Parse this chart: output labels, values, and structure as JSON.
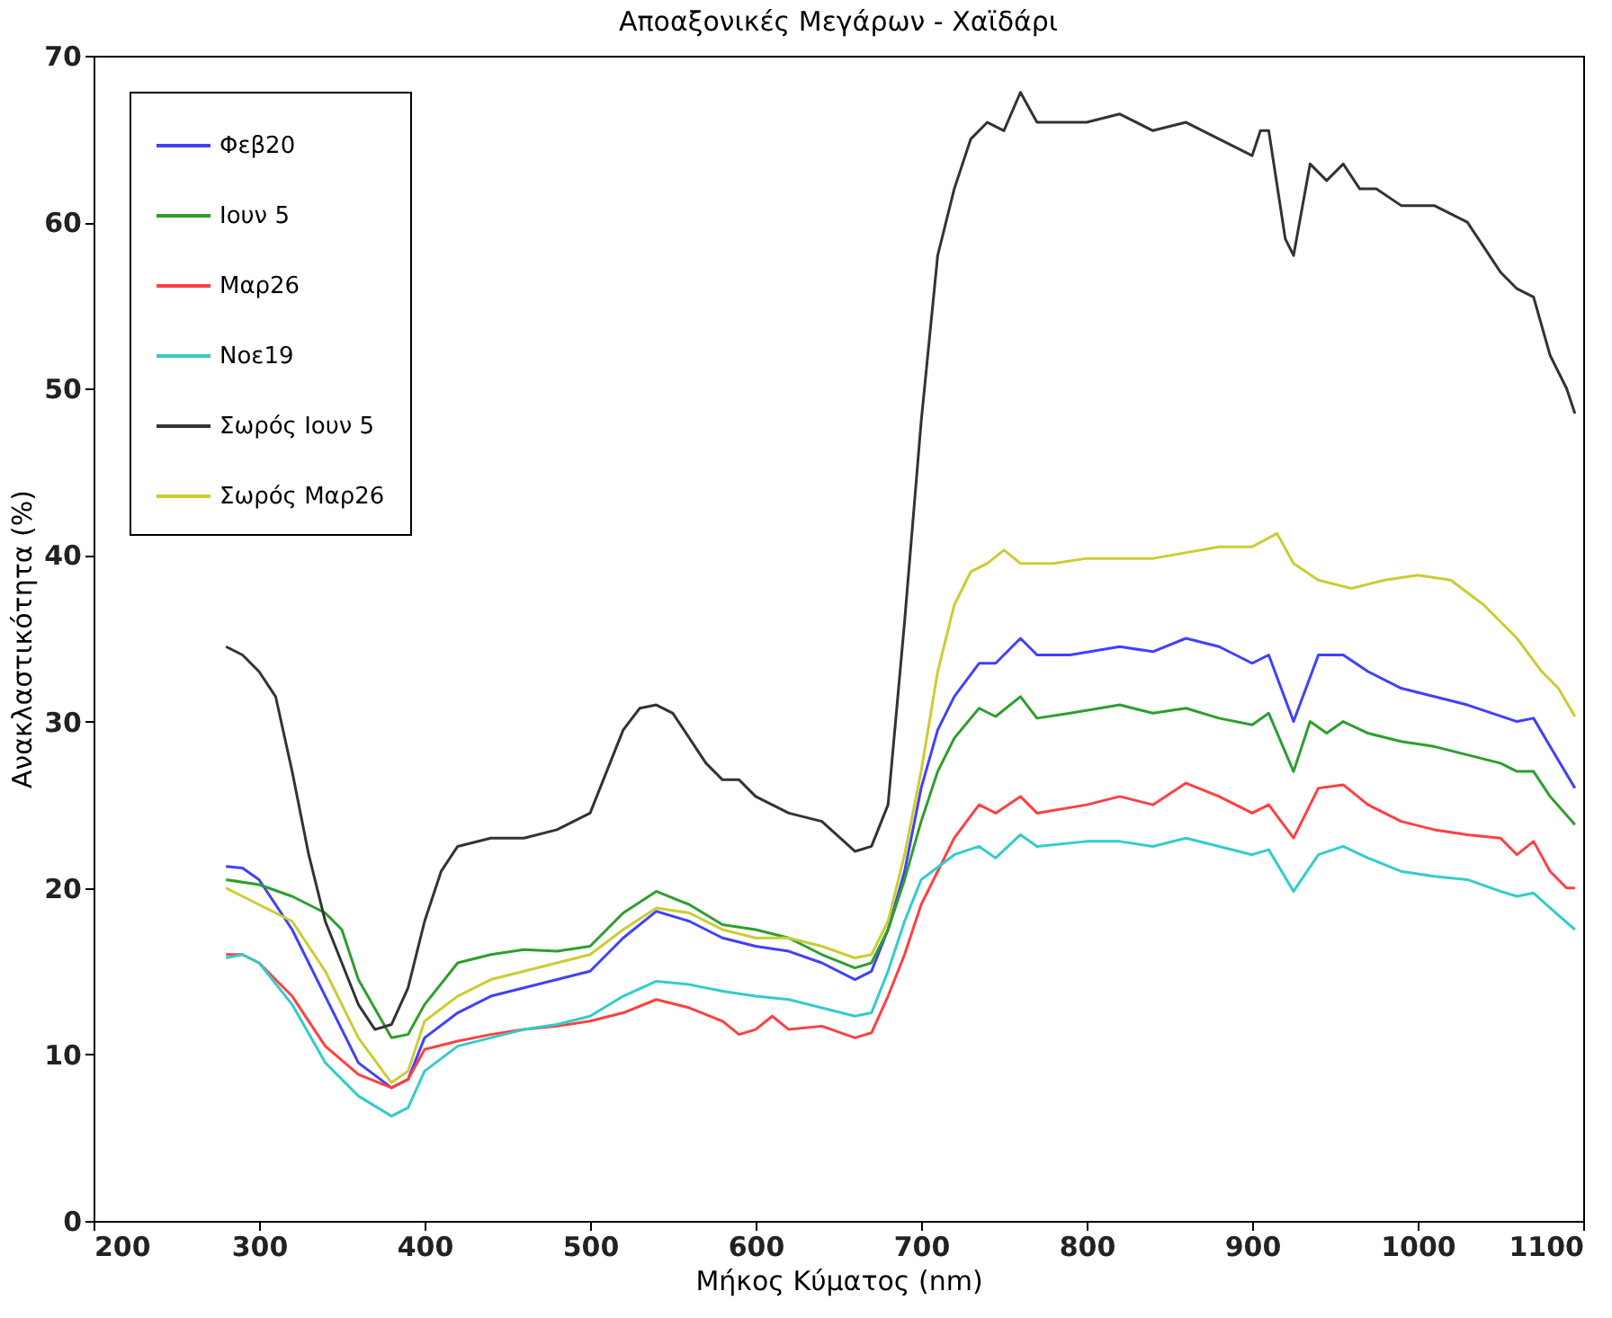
{
  "chart_data": {
    "type": "line",
    "title": "Αποαξονικές Μεγάρων - Χαϊδάρι",
    "xlabel": "Μήκος Κύματος (nm)",
    "ylabel": "Ανακλαστικότητα (%)",
    "xlim": [
      200,
      1100
    ],
    "ylim": [
      0,
      70
    ],
    "xticks": [
      200,
      300,
      400,
      500,
      600,
      700,
      800,
      900,
      1000,
      1100
    ],
    "yticks": [
      0,
      10,
      20,
      30,
      40,
      50,
      60,
      70
    ],
    "grid": false,
    "legend": "top left",
    "series": [
      {
        "name": "Φεβ20",
        "color": "#4040ff",
        "x": [
          280,
          290,
          300,
          320,
          340,
          360,
          380,
          390,
          400,
          420,
          440,
          460,
          480,
          500,
          520,
          540,
          560,
          580,
          600,
          620,
          640,
          660,
          670,
          680,
          690,
          700,
          710,
          720,
          735,
          745,
          760,
          770,
          790,
          820,
          840,
          860,
          880,
          900,
          910,
          925,
          940,
          955,
          970,
          990,
          1010,
          1030,
          1060,
          1070,
          1080,
          1095
        ],
        "values": [
          21.3,
          21.2,
          20.5,
          17.5,
          13.5,
          9.5,
          8.0,
          8.5,
          11,
          12.5,
          13.5,
          14,
          14.5,
          15,
          17,
          18.6,
          18,
          17,
          16.5,
          16.2,
          15.5,
          14.5,
          15,
          17.5,
          21,
          26,
          29.5,
          31.5,
          33.5,
          33.5,
          35,
          34,
          34,
          34.5,
          34.2,
          35,
          34.5,
          33.5,
          34,
          30,
          34,
          34,
          33,
          32,
          31.5,
          31,
          30,
          30.2,
          28.5,
          26
        ]
      },
      {
        "name": "Ιουν 5",
        "color": "#2e9e2e",
        "x": [
          280,
          300,
          320,
          340,
          350,
          360,
          380,
          390,
          400,
          420,
          440,
          460,
          480,
          500,
          520,
          540,
          560,
          580,
          600,
          620,
          640,
          660,
          670,
          680,
          690,
          700,
          710,
          720,
          735,
          745,
          760,
          770,
          790,
          820,
          840,
          860,
          880,
          900,
          910,
          925,
          935,
          945,
          955,
          970,
          990,
          1010,
          1030,
          1050,
          1060,
          1070,
          1080,
          1095
        ],
        "values": [
          20.5,
          20.2,
          19.5,
          18.5,
          17.5,
          14.5,
          11,
          11.2,
          13,
          15.5,
          16,
          16.3,
          16.2,
          16.5,
          18.5,
          19.8,
          19,
          17.8,
          17.5,
          17,
          16,
          15.2,
          15.5,
          17.5,
          20.5,
          24,
          27,
          29,
          30.8,
          30.3,
          31.5,
          30.2,
          30.5,
          31,
          30.5,
          30.8,
          30.2,
          29.8,
          30.5,
          27,
          30,
          29.3,
          30,
          29.3,
          28.8,
          28.5,
          28,
          27.5,
          27,
          27,
          25.5,
          23.8
        ]
      },
      {
        "name": "Μαρ26",
        "color": "#ff4040",
        "x": [
          280,
          290,
          300,
          320,
          340,
          360,
          380,
          390,
          400,
          420,
          440,
          460,
          480,
          500,
          520,
          540,
          560,
          580,
          590,
          600,
          610,
          620,
          640,
          660,
          670,
          680,
          690,
          700,
          720,
          735,
          745,
          760,
          770,
          800,
          820,
          840,
          860,
          880,
          900,
          910,
          925,
          940,
          955,
          970,
          990,
          1010,
          1030,
          1050,
          1060,
          1070,
          1080,
          1090,
          1095
        ],
        "values": [
          16,
          16,
          15.5,
          13.5,
          10.5,
          8.8,
          8.0,
          8.5,
          10.3,
          10.8,
          11.2,
          11.5,
          11.7,
          12,
          12.5,
          13.3,
          12.8,
          12,
          11.2,
          11.5,
          12.3,
          11.5,
          11.7,
          11,
          11.3,
          13.5,
          16,
          19,
          23,
          25,
          24.5,
          25.5,
          24.5,
          25,
          25.5,
          25,
          26.3,
          25.5,
          24.5,
          25,
          23,
          26,
          26.2,
          25,
          24,
          23.5,
          23.2,
          23,
          22,
          22.8,
          21,
          20,
          20
        ]
      },
      {
        "name": "Νοε19",
        "color": "#33cccc",
        "x": [
          280,
          290,
          300,
          320,
          340,
          360,
          380,
          390,
          400,
          420,
          440,
          460,
          480,
          500,
          520,
          540,
          560,
          580,
          600,
          620,
          640,
          660,
          670,
          680,
          690,
          700,
          720,
          735,
          745,
          760,
          770,
          800,
          820,
          840,
          860,
          880,
          900,
          910,
          925,
          940,
          955,
          970,
          990,
          1010,
          1030,
          1050,
          1060,
          1070,
          1080,
          1095
        ],
        "values": [
          15.8,
          16,
          15.5,
          13,
          9.5,
          7.5,
          6.3,
          6.8,
          9,
          10.5,
          11,
          11.5,
          11.8,
          12.3,
          13.5,
          14.4,
          14.2,
          13.8,
          13.5,
          13.3,
          12.8,
          12.3,
          12.5,
          15,
          18,
          20.5,
          22,
          22.5,
          21.8,
          23.2,
          22.5,
          22.8,
          22.8,
          22.5,
          23,
          22.5,
          22,
          22.3,
          19.8,
          22,
          22.5,
          21.8,
          21,
          20.7,
          20.5,
          19.8,
          19.5,
          19.7,
          18.8,
          17.5
        ]
      },
      {
        "name": "Σωρός Ιουν 5",
        "color": "#333333",
        "x": [
          280,
          290,
          300,
          310,
          320,
          330,
          340,
          350,
          360,
          370,
          380,
          390,
          400,
          410,
          420,
          440,
          460,
          480,
          500,
          510,
          520,
          530,
          540,
          550,
          560,
          570,
          580,
          590,
          600,
          620,
          640,
          660,
          670,
          680,
          690,
          700,
          710,
          720,
          730,
          740,
          750,
          760,
          770,
          800,
          820,
          840,
          860,
          880,
          900,
          905,
          910,
          920,
          925,
          935,
          945,
          955,
          965,
          975,
          990,
          1010,
          1030,
          1050,
          1060,
          1070,
          1080,
          1090,
          1095
        ],
        "values": [
          34.5,
          34,
          33,
          31.5,
          27,
          22,
          18,
          15.5,
          13,
          11.5,
          11.8,
          14,
          18,
          21,
          22.5,
          23,
          23,
          23.5,
          24.5,
          27,
          29.5,
          30.8,
          31,
          30.5,
          29,
          27.5,
          26.5,
          26.5,
          25.5,
          24.5,
          24,
          22.2,
          22.5,
          25,
          36,
          48,
          58,
          62,
          65,
          66,
          65.5,
          67.8,
          66,
          66,
          66.5,
          65.5,
          66,
          65,
          64,
          65.5,
          65.5,
          59,
          58,
          63.5,
          62.5,
          63.5,
          62,
          62,
          61,
          61,
          60,
          57,
          56,
          55.5,
          52,
          50,
          48.5
        ]
      },
      {
        "name": "Σωρός Μαρ26",
        "color": "#cccc33",
        "x": [
          280,
          300,
          320,
          340,
          360,
          380,
          390,
          400,
          420,
          440,
          460,
          480,
          500,
          520,
          540,
          560,
          580,
          600,
          620,
          640,
          660,
          670,
          680,
          690,
          700,
          710,
          720,
          730,
          740,
          750,
          760,
          780,
          800,
          840,
          880,
          900,
          915,
          925,
          940,
          960,
          980,
          1000,
          1020,
          1040,
          1060,
          1075,
          1085,
          1095
        ],
        "values": [
          20,
          19,
          18,
          15,
          11,
          8.3,
          9,
          12,
          13.5,
          14.5,
          15,
          15.5,
          16,
          17.5,
          18.8,
          18.5,
          17.5,
          17,
          17,
          16.5,
          15.8,
          16,
          18,
          22,
          27,
          33,
          37,
          39,
          39.5,
          40.3,
          39.5,
          39.5,
          39.8,
          39.8,
          40.5,
          40.5,
          41.3,
          39.5,
          38.5,
          38,
          38.5,
          38.8,
          38.5,
          37,
          35,
          33,
          32,
          30.3
        ]
      }
    ]
  }
}
